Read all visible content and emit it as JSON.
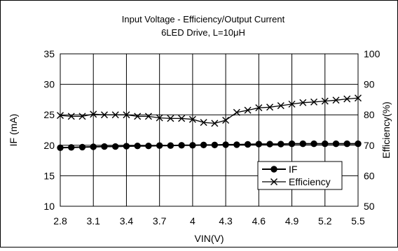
{
  "chart_data": {
    "type": "line",
    "title": "Input Voltage  -  Efficiency/Output Current",
    "subtitle": "6LED Drive,  L=10μH",
    "xlabel": "VIN(V)",
    "ylabel_left": "IF (mA)",
    "ylabel_right": "Efficiency(%)",
    "x_ticks": [
      "2.8",
      "3.1",
      "3.4",
      "3.7",
      "4",
      "4.3",
      "4.6",
      "4.9",
      "5.2",
      "5.5"
    ],
    "y_left_ticks": [
      "10",
      "15",
      "20",
      "25",
      "30",
      "35"
    ],
    "y_right_ticks": [
      "50",
      "60",
      "70",
      "80",
      "90",
      "100"
    ],
    "xlim": [
      2.8,
      5.5
    ],
    "ylim_left": [
      10,
      35
    ],
    "ylim_right": [
      50,
      100
    ],
    "grid": true,
    "legend_position": "lower-right",
    "series": [
      {
        "name": "IF",
        "axis": "left",
        "marker": "circle",
        "color": "#000000",
        "x": [
          2.8,
          2.9,
          3.0,
          3.1,
          3.2,
          3.3,
          3.4,
          3.5,
          3.6,
          3.7,
          3.8,
          3.9,
          4.0,
          4.1,
          4.2,
          4.3,
          4.4,
          4.5,
          4.6,
          4.7,
          4.8,
          4.9,
          5.0,
          5.1,
          5.2,
          5.3,
          5.4,
          5.5
        ],
        "values": [
          19.6,
          19.65,
          19.7,
          19.75,
          19.8,
          19.8,
          19.85,
          19.9,
          19.9,
          19.95,
          19.95,
          20.0,
          20.0,
          20.05,
          20.05,
          20.1,
          20.1,
          20.15,
          20.2,
          20.2,
          20.2,
          20.25,
          20.25,
          20.25,
          20.25,
          20.25,
          20.25,
          20.25
        ]
      },
      {
        "name": "Efficiency",
        "axis": "right",
        "marker": "x",
        "color": "#000000",
        "x": [
          2.8,
          2.9,
          3.0,
          3.1,
          3.2,
          3.3,
          3.4,
          3.5,
          3.6,
          3.7,
          3.8,
          3.9,
          4.0,
          4.1,
          4.2,
          4.3,
          4.4,
          4.5,
          4.6,
          4.7,
          4.8,
          4.9,
          5.0,
          5.1,
          5.2,
          5.3,
          5.4,
          5.5
        ],
        "values": [
          79.8,
          79.5,
          79.5,
          80.2,
          80.0,
          80.0,
          80.0,
          79.5,
          79.5,
          79.0,
          78.8,
          78.8,
          78.5,
          77.5,
          77.2,
          78.2,
          80.8,
          81.5,
          82.3,
          82.5,
          83.0,
          83.5,
          84.0,
          84.2,
          84.5,
          84.8,
          85.2,
          85.5
        ]
      }
    ]
  }
}
